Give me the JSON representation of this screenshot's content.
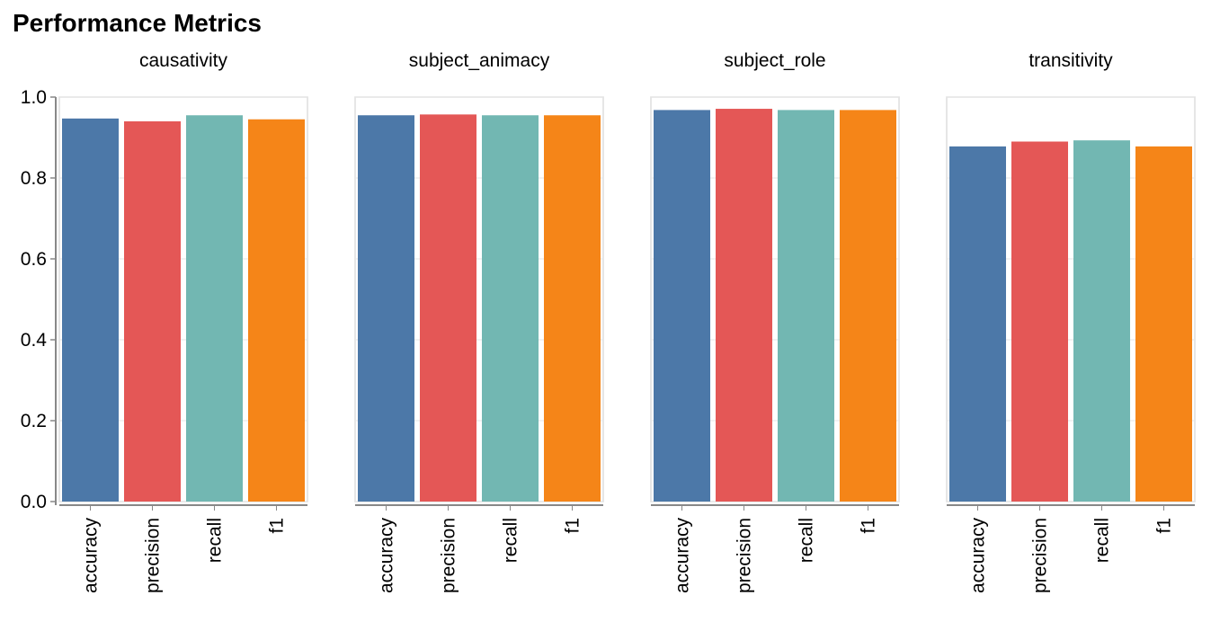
{
  "chart_data": {
    "type": "bar",
    "title": "Performance Metrics",
    "categories": [
      "accuracy",
      "precision",
      "recall",
      "f1"
    ],
    "colors": {
      "accuracy": "#4c78a8",
      "precision": "#e45756",
      "recall": "#72b7b2",
      "f1": "#f58518"
    },
    "ylim": [
      0,
      1
    ],
    "yticks": [
      "0.0",
      "0.2",
      "0.4",
      "0.6",
      "0.8",
      "1.0"
    ],
    "grid": true,
    "facets": [
      {
        "name": "causativity",
        "values": [
          0.947,
          0.94,
          0.955,
          0.945
        ]
      },
      {
        "name": "subject_animacy",
        "values": [
          0.955,
          0.957,
          0.955,
          0.955
        ]
      },
      {
        "name": "subject_role",
        "values": [
          0.968,
          0.971,
          0.968,
          0.968
        ]
      },
      {
        "name": "transitivity",
        "values": [
          0.878,
          0.89,
          0.893,
          0.878
        ]
      }
    ]
  }
}
